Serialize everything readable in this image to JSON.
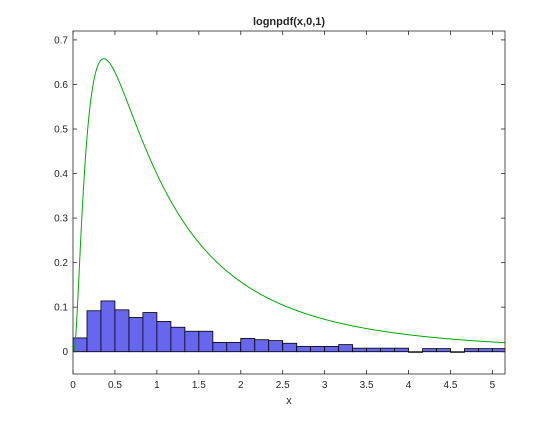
{
  "chart_data": {
    "type": "bar",
    "title": "lognpdf(x,0,1)",
    "xlabel": "x",
    "ylabel": "",
    "xlim": [
      0,
      5.15
    ],
    "ylim": [
      -0.05,
      0.72
    ],
    "xticks": [
      0,
      0.5,
      1,
      1.5,
      2,
      2.5,
      3,
      3.5,
      4,
      4.5,
      5
    ],
    "xtick_labels": [
      "0",
      "0.5",
      "1",
      "1.5",
      "2",
      "2.5",
      "3",
      "3.5",
      "4",
      "4.5",
      "5"
    ],
    "yticks": [
      0,
      0.1,
      0.2,
      0.3,
      0.4,
      0.5,
      0.6,
      0.7
    ],
    "ytick_labels": [
      "0",
      "0.1",
      "0.2",
      "0.3",
      "0.4",
      "0.5",
      "0.6",
      "0.7"
    ],
    "grid": false,
    "histogram": {
      "bin_width": 0.167,
      "bin_starts": [
        0,
        0.167,
        0.333,
        0.5,
        0.667,
        0.833,
        1.0,
        1.167,
        1.333,
        1.5,
        1.667,
        1.833,
        2.0,
        2.167,
        2.333,
        2.5,
        2.667,
        2.833,
        3.0,
        3.167,
        3.333,
        3.5,
        3.667,
        3.833,
        4.0,
        4.167,
        4.333,
        4.5,
        4.667,
        4.833,
        5.0
      ],
      "values": [
        0.031,
        0.092,
        0.114,
        0.094,
        0.077,
        0.088,
        0.068,
        0.055,
        0.046,
        0.046,
        0.021,
        0.021,
        0.03,
        0.027,
        0.025,
        0.019,
        0.012,
        0.012,
        0.012,
        0.016,
        0.008,
        0.008,
        0.008,
        0.008,
        0.0,
        0.007,
        0.007,
        0.0,
        0.007,
        0.007,
        0.007
      ],
      "color": "#6666ee"
    },
    "curve": {
      "function": "lognpdf",
      "mu": 0,
      "sigma": 1,
      "x_range": [
        0,
        5.15
      ],
      "color": "#00aa00"
    }
  }
}
